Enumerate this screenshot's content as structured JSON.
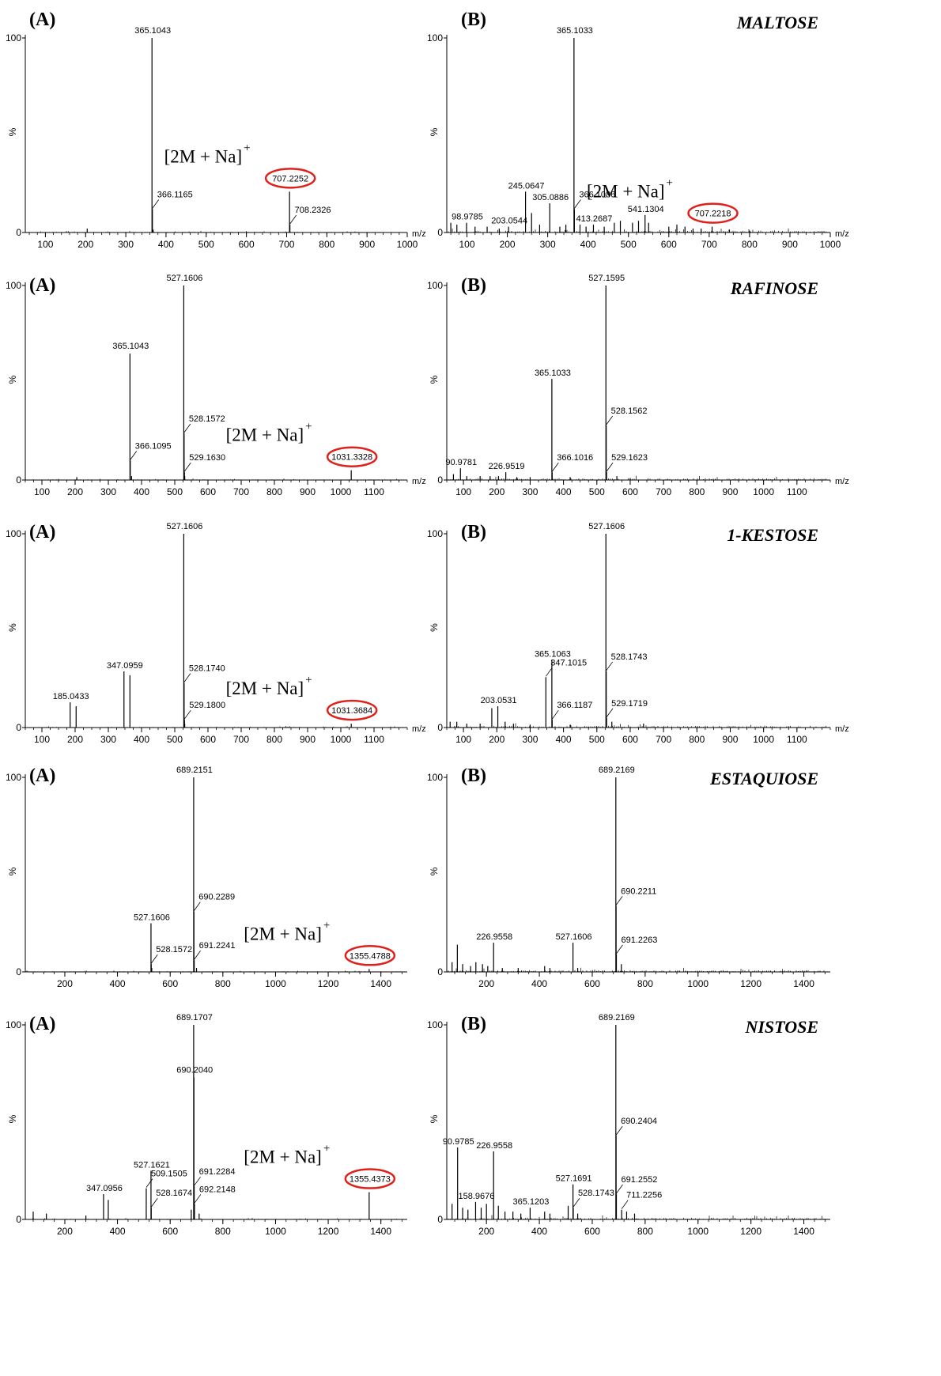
{
  "chart_data": [
    {
      "type": "bar",
      "panel": "(A)",
      "title": "",
      "adduct": "[2M + Na]",
      "adduct_charge": "+",
      "xlabel": "m/z",
      "ylabel": "%",
      "xlim": [
        50,
        1000
      ],
      "ylim": [
        0,
        100
      ],
      "xticks": [
        100,
        200,
        300,
        400,
        500,
        600,
        700,
        800,
        900,
        1000
      ],
      "yticks": [
        0,
        100
      ],
      "highlight": "707.2252",
      "peaks": [
        {
          "x": 365.1043,
          "y": 100,
          "label": "365.1043"
        },
        {
          "x": 366.1165,
          "y": 12,
          "label": "366.1165"
        },
        {
          "x": 707.2252,
          "y": 21,
          "label": "707.2252"
        },
        {
          "x": 708.2326,
          "y": 4,
          "label": "708.2326"
        },
        {
          "x": 204,
          "y": 2
        },
        {
          "x": 368,
          "y": 1.5
        }
      ]
    },
    {
      "type": "bar",
      "panel": "(B)",
      "title": "MALTOSE",
      "adduct": "[2M + Na]",
      "adduct_charge": "+",
      "xlabel": "m/z",
      "ylabel": "%",
      "xlim": [
        50,
        1000
      ],
      "ylim": [
        0,
        100
      ],
      "xticks": [
        100,
        200,
        300,
        400,
        500,
        600,
        700,
        800,
        900,
        1000
      ],
      "yticks": [
        0,
        100
      ],
      "highlight": "707.2218",
      "peaks": [
        {
          "x": 98.9785,
          "y": 5,
          "label": "98.9785"
        },
        {
          "x": 203.0544,
          "y": 3,
          "label": "203.0544"
        },
        {
          "x": 245.0647,
          "y": 21,
          "label": "245.0647"
        },
        {
          "x": 305.0886,
          "y": 15,
          "label": "305.0886"
        },
        {
          "x": 365.1033,
          "y": 100,
          "label": "365.1033"
        },
        {
          "x": 366.1086,
          "y": 12,
          "label": "366.1086"
        },
        {
          "x": 413.2687,
          "y": 4,
          "label": "413.2687"
        },
        {
          "x": 541.1304,
          "y": 9,
          "label": "541.1304"
        },
        {
          "x": 707.2218,
          "y": 3,
          "label": "707.2218"
        },
        {
          "x": 60,
          "y": 5
        },
        {
          "x": 75,
          "y": 4
        },
        {
          "x": 120,
          "y": 3
        },
        {
          "x": 150,
          "y": 3
        },
        {
          "x": 180,
          "y": 2
        },
        {
          "x": 260,
          "y": 10
        },
        {
          "x": 280,
          "y": 4
        },
        {
          "x": 330,
          "y": 3
        },
        {
          "x": 345,
          "y": 4
        },
        {
          "x": 380,
          "y": 4
        },
        {
          "x": 395,
          "y": 3
        },
        {
          "x": 440,
          "y": 3
        },
        {
          "x": 465,
          "y": 5
        },
        {
          "x": 480,
          "y": 6
        },
        {
          "x": 510,
          "y": 5
        },
        {
          "x": 525,
          "y": 6
        },
        {
          "x": 550,
          "y": 5
        },
        {
          "x": 600,
          "y": 3
        },
        {
          "x": 620,
          "y": 4
        },
        {
          "x": 640,
          "y": 3
        },
        {
          "x": 660,
          "y": 2
        },
        {
          "x": 680,
          "y": 2
        },
        {
          "x": 750,
          "y": 1.5
        },
        {
          "x": 800,
          "y": 1
        }
      ]
    },
    {
      "type": "bar",
      "panel": "(A)",
      "title": "",
      "adduct": "[2M + Na]",
      "adduct_charge": "+",
      "xlabel": "m/z",
      "ylabel": "%",
      "xlim": [
        50,
        1200
      ],
      "ylim": [
        0,
        100
      ],
      "xticks": [
        100,
        200,
        300,
        400,
        500,
        600,
        700,
        800,
        900,
        1000,
        1100
      ],
      "yticks": [
        0,
        100
      ],
      "highlight": "1031.3328",
      "peaks": [
        {
          "x": 365.1043,
          "y": 65,
          "label": "365.1043"
        },
        {
          "x": 366.1095,
          "y": 10,
          "label": "366.1095"
        },
        {
          "x": 527.1606,
          "y": 100,
          "label": "527.1606"
        },
        {
          "x": 528.1572,
          "y": 24,
          "label": "528.1572"
        },
        {
          "x": 529.163,
          "y": 4,
          "label": "529.1630"
        },
        {
          "x": 1031.3328,
          "y": 5,
          "label": "1031.3328"
        },
        {
          "x": 205,
          "y": 1.5
        },
        {
          "x": 530,
          "y": 2
        },
        {
          "x": 370,
          "y": 2
        }
      ]
    },
    {
      "type": "bar",
      "panel": "(B)",
      "title": "RAFINOSE",
      "adduct": "",
      "adduct_charge": "",
      "xlabel": "m/z",
      "ylabel": "%",
      "xlim": [
        50,
        1200
      ],
      "ylim": [
        0,
        100
      ],
      "xticks": [
        100,
        200,
        300,
        400,
        500,
        600,
        700,
        800,
        900,
        1000,
        1100
      ],
      "yticks": [
        0,
        100
      ],
      "highlight": "",
      "peaks": [
        {
          "x": 90.9781,
          "y": 6,
          "label": "90.9781"
        },
        {
          "x": 226.9519,
          "y": 4,
          "label": "226.9519"
        },
        {
          "x": 365.1033,
          "y": 52,
          "label": "365.1033"
        },
        {
          "x": 366.1016,
          "y": 4,
          "label": "366.1016"
        },
        {
          "x": 527.1595,
          "y": 100,
          "label": "527.1595"
        },
        {
          "x": 528.1562,
          "y": 28,
          "label": "528.1562"
        },
        {
          "x": 529.1623,
          "y": 4,
          "label": "529.1623"
        },
        {
          "x": 70,
          "y": 3
        },
        {
          "x": 110,
          "y": 2
        },
        {
          "x": 150,
          "y": 2
        },
        {
          "x": 180,
          "y": 2
        },
        {
          "x": 205,
          "y": 2
        },
        {
          "x": 260,
          "y": 1.5
        },
        {
          "x": 300,
          "y": 1.5
        },
        {
          "x": 420,
          "y": 1.5
        },
        {
          "x": 560,
          "y": 2
        },
        {
          "x": 600,
          "y": 1
        }
      ]
    },
    {
      "type": "bar",
      "panel": "(A)",
      "title": "",
      "adduct": "[2M + Na]",
      "adduct_charge": "+",
      "xlabel": "m/z",
      "ylabel": "%",
      "xlim": [
        50,
        1200
      ],
      "ylim": [
        0,
        100
      ],
      "xticks": [
        100,
        200,
        300,
        400,
        500,
        600,
        700,
        800,
        900,
        1000,
        1100
      ],
      "yticks": [
        0,
        100
      ],
      "highlight": "1031.3684",
      "peaks": [
        {
          "x": 185.0433,
          "y": 13,
          "label": "185.0433"
        },
        {
          "x": 347.0959,
          "y": 29,
          "label": "347.0959"
        },
        {
          "x": 365,
          "y": 27
        },
        {
          "x": 527.1606,
          "y": 100,
          "label": "527.1606"
        },
        {
          "x": 528.174,
          "y": 23,
          "label": "528.1740"
        },
        {
          "x": 529.18,
          "y": 4,
          "label": "529.1800"
        },
        {
          "x": 1031.3684,
          "y": 2,
          "label": "1031.3684"
        },
        {
          "x": 203,
          "y": 11
        },
        {
          "x": 530,
          "y": 2
        }
      ]
    },
    {
      "type": "bar",
      "panel": "(B)",
      "title": "1-KESTOSE",
      "adduct": "",
      "adduct_charge": "",
      "xlabel": "m/z",
      "ylabel": "%",
      "xlim": [
        50,
        1200
      ],
      "ylim": [
        0,
        100
      ],
      "xticks": [
        100,
        200,
        300,
        400,
        500,
        600,
        700,
        800,
        900,
        1000,
        1100
      ],
      "yticks": [
        0,
        100
      ],
      "highlight": "",
      "peaks": [
        {
          "x": 185,
          "y": 10
        },
        {
          "x": 203.0531,
          "y": 11,
          "label": "203.0531"
        },
        {
          "x": 347.1015,
          "y": 26,
          "label": "347.1015"
        },
        {
          "x": 365.1063,
          "y": 35,
          "label": "365.1063"
        },
        {
          "x": 366.1187,
          "y": 4,
          "label": "366.1187"
        },
        {
          "x": 527.1606,
          "y": 100,
          "label": "527.1606"
        },
        {
          "x": 528.1743,
          "y": 29,
          "label": "528.1743"
        },
        {
          "x": 529.1719,
          "y": 5,
          "label": "529.1719"
        },
        {
          "x": 60,
          "y": 3
        },
        {
          "x": 80,
          "y": 3
        },
        {
          "x": 110,
          "y": 2
        },
        {
          "x": 150,
          "y": 2
        },
        {
          "x": 225,
          "y": 3
        },
        {
          "x": 250,
          "y": 2
        },
        {
          "x": 300,
          "y": 1.5
        },
        {
          "x": 420,
          "y": 1.5
        },
        {
          "x": 545,
          "y": 3
        },
        {
          "x": 640,
          "y": 2
        }
      ]
    },
    {
      "type": "bar",
      "panel": "(A)",
      "title": "",
      "adduct": "[2M + Na]",
      "adduct_charge": "+",
      "xlabel": "",
      "ylabel": "%",
      "xlim": [
        50,
        1500
      ],
      "ylim": [
        0,
        100
      ],
      "xticks": [
        200,
        400,
        600,
        800,
        1000,
        1200,
        1400
      ],
      "yticks": [
        0,
        100
      ],
      "highlight": "1355.4788",
      "peaks": [
        {
          "x": 527.1606,
          "y": 25,
          "label": "527.1606"
        },
        {
          "x": 528.1572,
          "y": 4,
          "label": "528.1572"
        },
        {
          "x": 689.2151,
          "y": 100,
          "label": "689.2151"
        },
        {
          "x": 690.2289,
          "y": 31,
          "label": "690.2289"
        },
        {
          "x": 691.2241,
          "y": 6,
          "label": "691.2241"
        },
        {
          "x": 1355.4788,
          "y": 1.5,
          "label": "1355.4788"
        },
        {
          "x": 530,
          "y": 2
        },
        {
          "x": 700,
          "y": 2
        }
      ]
    },
    {
      "type": "bar",
      "panel": "(B)",
      "title": "ESTAQUIOSE",
      "adduct": "",
      "adduct_charge": "",
      "xlabel": "",
      "ylabel": "%",
      "xlim": [
        50,
        1500
      ],
      "ylim": [
        0,
        100
      ],
      "xticks": [
        200,
        400,
        600,
        800,
        1000,
        1200,
        1400
      ],
      "yticks": [
        0,
        100
      ],
      "highlight": "",
      "peaks": [
        {
          "x": 90,
          "y": 14
        },
        {
          "x": 226.9558,
          "y": 15,
          "label": "226.9558"
        },
        {
          "x": 527.1606,
          "y": 15,
          "label": "527.1606"
        },
        {
          "x": 689.2169,
          "y": 100,
          "label": "689.2169"
        },
        {
          "x": 690.2211,
          "y": 34,
          "label": "690.2211"
        },
        {
          "x": 691.2263,
          "y": 9,
          "label": "691.2263"
        },
        {
          "x": 70,
          "y": 5
        },
        {
          "x": 110,
          "y": 4
        },
        {
          "x": 140,
          "y": 3
        },
        {
          "x": 160,
          "y": 5
        },
        {
          "x": 185,
          "y": 4
        },
        {
          "x": 205,
          "y": 3
        },
        {
          "x": 260,
          "y": 2
        },
        {
          "x": 320,
          "y": 2
        },
        {
          "x": 420,
          "y": 3
        },
        {
          "x": 440,
          "y": 2
        },
        {
          "x": 545,
          "y": 2
        },
        {
          "x": 710,
          "y": 4
        }
      ]
    },
    {
      "type": "bar",
      "panel": "(A)",
      "title": "",
      "adduct": "[2M + Na]",
      "adduct_charge": "+",
      "xlabel": "",
      "ylabel": "%",
      "xlim": [
        50,
        1500
      ],
      "ylim": [
        0,
        100
      ],
      "xticks": [
        200,
        400,
        600,
        800,
        1000,
        1200,
        1400
      ],
      "yticks": [
        0,
        100
      ],
      "highlight": "1355.4373",
      "peaks": [
        {
          "x": 347.0956,
          "y": 13,
          "label": "347.0956"
        },
        {
          "x": 365,
          "y": 10
        },
        {
          "x": 509.1505,
          "y": 16,
          "label": "509.1505"
        },
        {
          "x": 527.1621,
          "y": 25,
          "label": "527.1621"
        },
        {
          "x": 528.1674,
          "y": 6,
          "label": "528.1674"
        },
        {
          "x": 689.1707,
          "y": 100,
          "label": "689.1707"
        },
        {
          "x": 690.204,
          "y": 73,
          "label": "690.2040"
        },
        {
          "x": 691.2284,
          "y": 17,
          "label": "691.2284"
        },
        {
          "x": 692.2148,
          "y": 8,
          "label": "692.2148"
        },
        {
          "x": 1355.4373,
          "y": 14,
          "label": "1355.4373"
        },
        {
          "x": 80,
          "y": 4
        },
        {
          "x": 130,
          "y": 3
        },
        {
          "x": 280,
          "y": 2
        },
        {
          "x": 680,
          "y": 5
        },
        {
          "x": 710,
          "y": 3
        }
      ]
    },
    {
      "type": "bar",
      "panel": "(B)",
      "title": "NISTOSE",
      "adduct": "",
      "adduct_charge": "",
      "xlabel": "",
      "ylabel": "%",
      "xlim": [
        50,
        1500
      ],
      "ylim": [
        0,
        100
      ],
      "xticks": [
        200,
        400,
        600,
        800,
        1000,
        1200,
        1400
      ],
      "yticks": [
        0,
        100
      ],
      "highlight": "",
      "peaks": [
        {
          "x": 90.9785,
          "y": 37,
          "label": "90.9785"
        },
        {
          "x": 158.9676,
          "y": 9,
          "label": "158.9676"
        },
        {
          "x": 226.9558,
          "y": 35,
          "label": "226.9558"
        },
        {
          "x": 365.1203,
          "y": 6,
          "label": "365.1203"
        },
        {
          "x": 527.1691,
          "y": 18,
          "label": "527.1691"
        },
        {
          "x": 528.1743,
          "y": 6,
          "label": "528.1743"
        },
        {
          "x": 689.2169,
          "y": 100,
          "label": "689.2169"
        },
        {
          "x": 690.2404,
          "y": 43,
          "label": "690.2404"
        },
        {
          "x": 691.2552,
          "y": 13,
          "label": "691.2552"
        },
        {
          "x": 711.2256,
          "y": 5,
          "label": "711.2256"
        },
        {
          "x": 70,
          "y": 8
        },
        {
          "x": 110,
          "y": 6
        },
        {
          "x": 130,
          "y": 5
        },
        {
          "x": 180,
          "y": 6
        },
        {
          "x": 200,
          "y": 8
        },
        {
          "x": 245,
          "y": 7
        },
        {
          "x": 270,
          "y": 4
        },
        {
          "x": 300,
          "y": 4
        },
        {
          "x": 330,
          "y": 3
        },
        {
          "x": 420,
          "y": 4
        },
        {
          "x": 440,
          "y": 3
        },
        {
          "x": 509,
          "y": 7
        },
        {
          "x": 545,
          "y": 3
        },
        {
          "x": 730,
          "y": 4
        },
        {
          "x": 760,
          "y": 3
        }
      ]
    }
  ]
}
